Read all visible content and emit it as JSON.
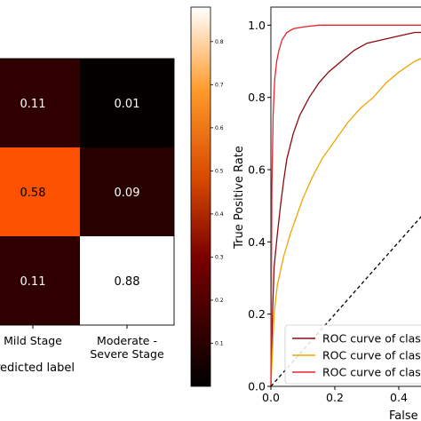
{
  "chart_data": [
    {
      "type": "heatmap",
      "columns": [
        "Mild Stage",
        "Moderate - Severe Stage"
      ],
      "column_label_lines": [
        [
          "Mild Stage"
        ],
        [
          "Moderate -",
          "Severe Stage"
        ]
      ],
      "xlabel": "redicted label",
      "values": [
        [
          0.11,
          0.01
        ],
        [
          0.58,
          0.09
        ],
        [
          0.11,
          0.88
        ]
      ],
      "cell_text": [
        [
          "0.11",
          "0.01"
        ],
        [
          "0.58",
          "0.09"
        ],
        [
          "0.11",
          "0.88"
        ]
      ],
      "colormap": "gist_heat",
      "colorbar": {
        "range": [
          0,
          0.88
        ],
        "tick_values": [
          0.1,
          0.2,
          0.3,
          0.4,
          0.5,
          0.6,
          0.7,
          0.8
        ],
        "tick_labels": [
          "0.1",
          "0.2",
          "0.3",
          "0.4",
          "0.5",
          "0.6",
          "0.7",
          "0.8"
        ]
      }
    },
    {
      "type": "line",
      "xlabel": "False",
      "ylabel": "True Positive Rate",
      "xlim": [
        0,
        0.5
      ],
      "ylim": [
        0,
        1.05
      ],
      "x_ticks": [
        0.0,
        0.2,
        0.4
      ],
      "x_tick_labels": [
        "0.0",
        "0.2",
        "0.4"
      ],
      "y_ticks": [
        0.0,
        0.2,
        0.4,
        0.6,
        0.8,
        1.0
      ],
      "y_tick_labels": [
        "0.0",
        "0.2",
        "0.4",
        "0.6",
        "0.8",
        "1.0"
      ],
      "legend_position": "lower-right",
      "legend_labels": [
        "ROC curve of clas",
        "ROC curve of clas",
        "ROC curve of clas"
      ],
      "series": [
        {
          "color": "#8b0a12",
          "x": [
            0,
            0.005,
            0.01,
            0.02,
            0.03,
            0.04,
            0.05,
            0.07,
            0.09,
            0.12,
            0.15,
            0.18,
            0.22,
            0.26,
            0.3,
            0.35,
            0.4,
            0.45,
            0.5
          ],
          "y": [
            0,
            0.2,
            0.33,
            0.42,
            0.5,
            0.57,
            0.63,
            0.7,
            0.75,
            0.8,
            0.84,
            0.87,
            0.9,
            0.93,
            0.95,
            0.96,
            0.97,
            0.98,
            0.98
          ]
        },
        {
          "color": "#f0a500",
          "x": [
            0,
            0.01,
            0.02,
            0.04,
            0.06,
            0.08,
            0.1,
            0.13,
            0.16,
            0.2,
            0.24,
            0.28,
            0.32,
            0.36,
            0.4,
            0.45,
            0.5
          ],
          "y": [
            0,
            0.2,
            0.28,
            0.36,
            0.42,
            0.47,
            0.52,
            0.58,
            0.63,
            0.68,
            0.73,
            0.77,
            0.8,
            0.84,
            0.87,
            0.9,
            0.92
          ]
        },
        {
          "color": "#e8232a",
          "x": [
            0,
            0.003,
            0.007,
            0.012,
            0.018,
            0.025,
            0.035,
            0.05,
            0.07,
            0.1,
            0.15,
            0.2,
            0.3,
            0.4,
            0.5
          ],
          "y": [
            0,
            0.55,
            0.75,
            0.85,
            0.9,
            0.93,
            0.96,
            0.98,
            0.99,
            0.995,
            1.0,
            1.0,
            1.0,
            1.0,
            1.0
          ]
        },
        {
          "style": "dashed",
          "color": "#000000",
          "x": [
            0,
            0.5
          ],
          "y": [
            0,
            0.5
          ]
        }
      ]
    }
  ]
}
